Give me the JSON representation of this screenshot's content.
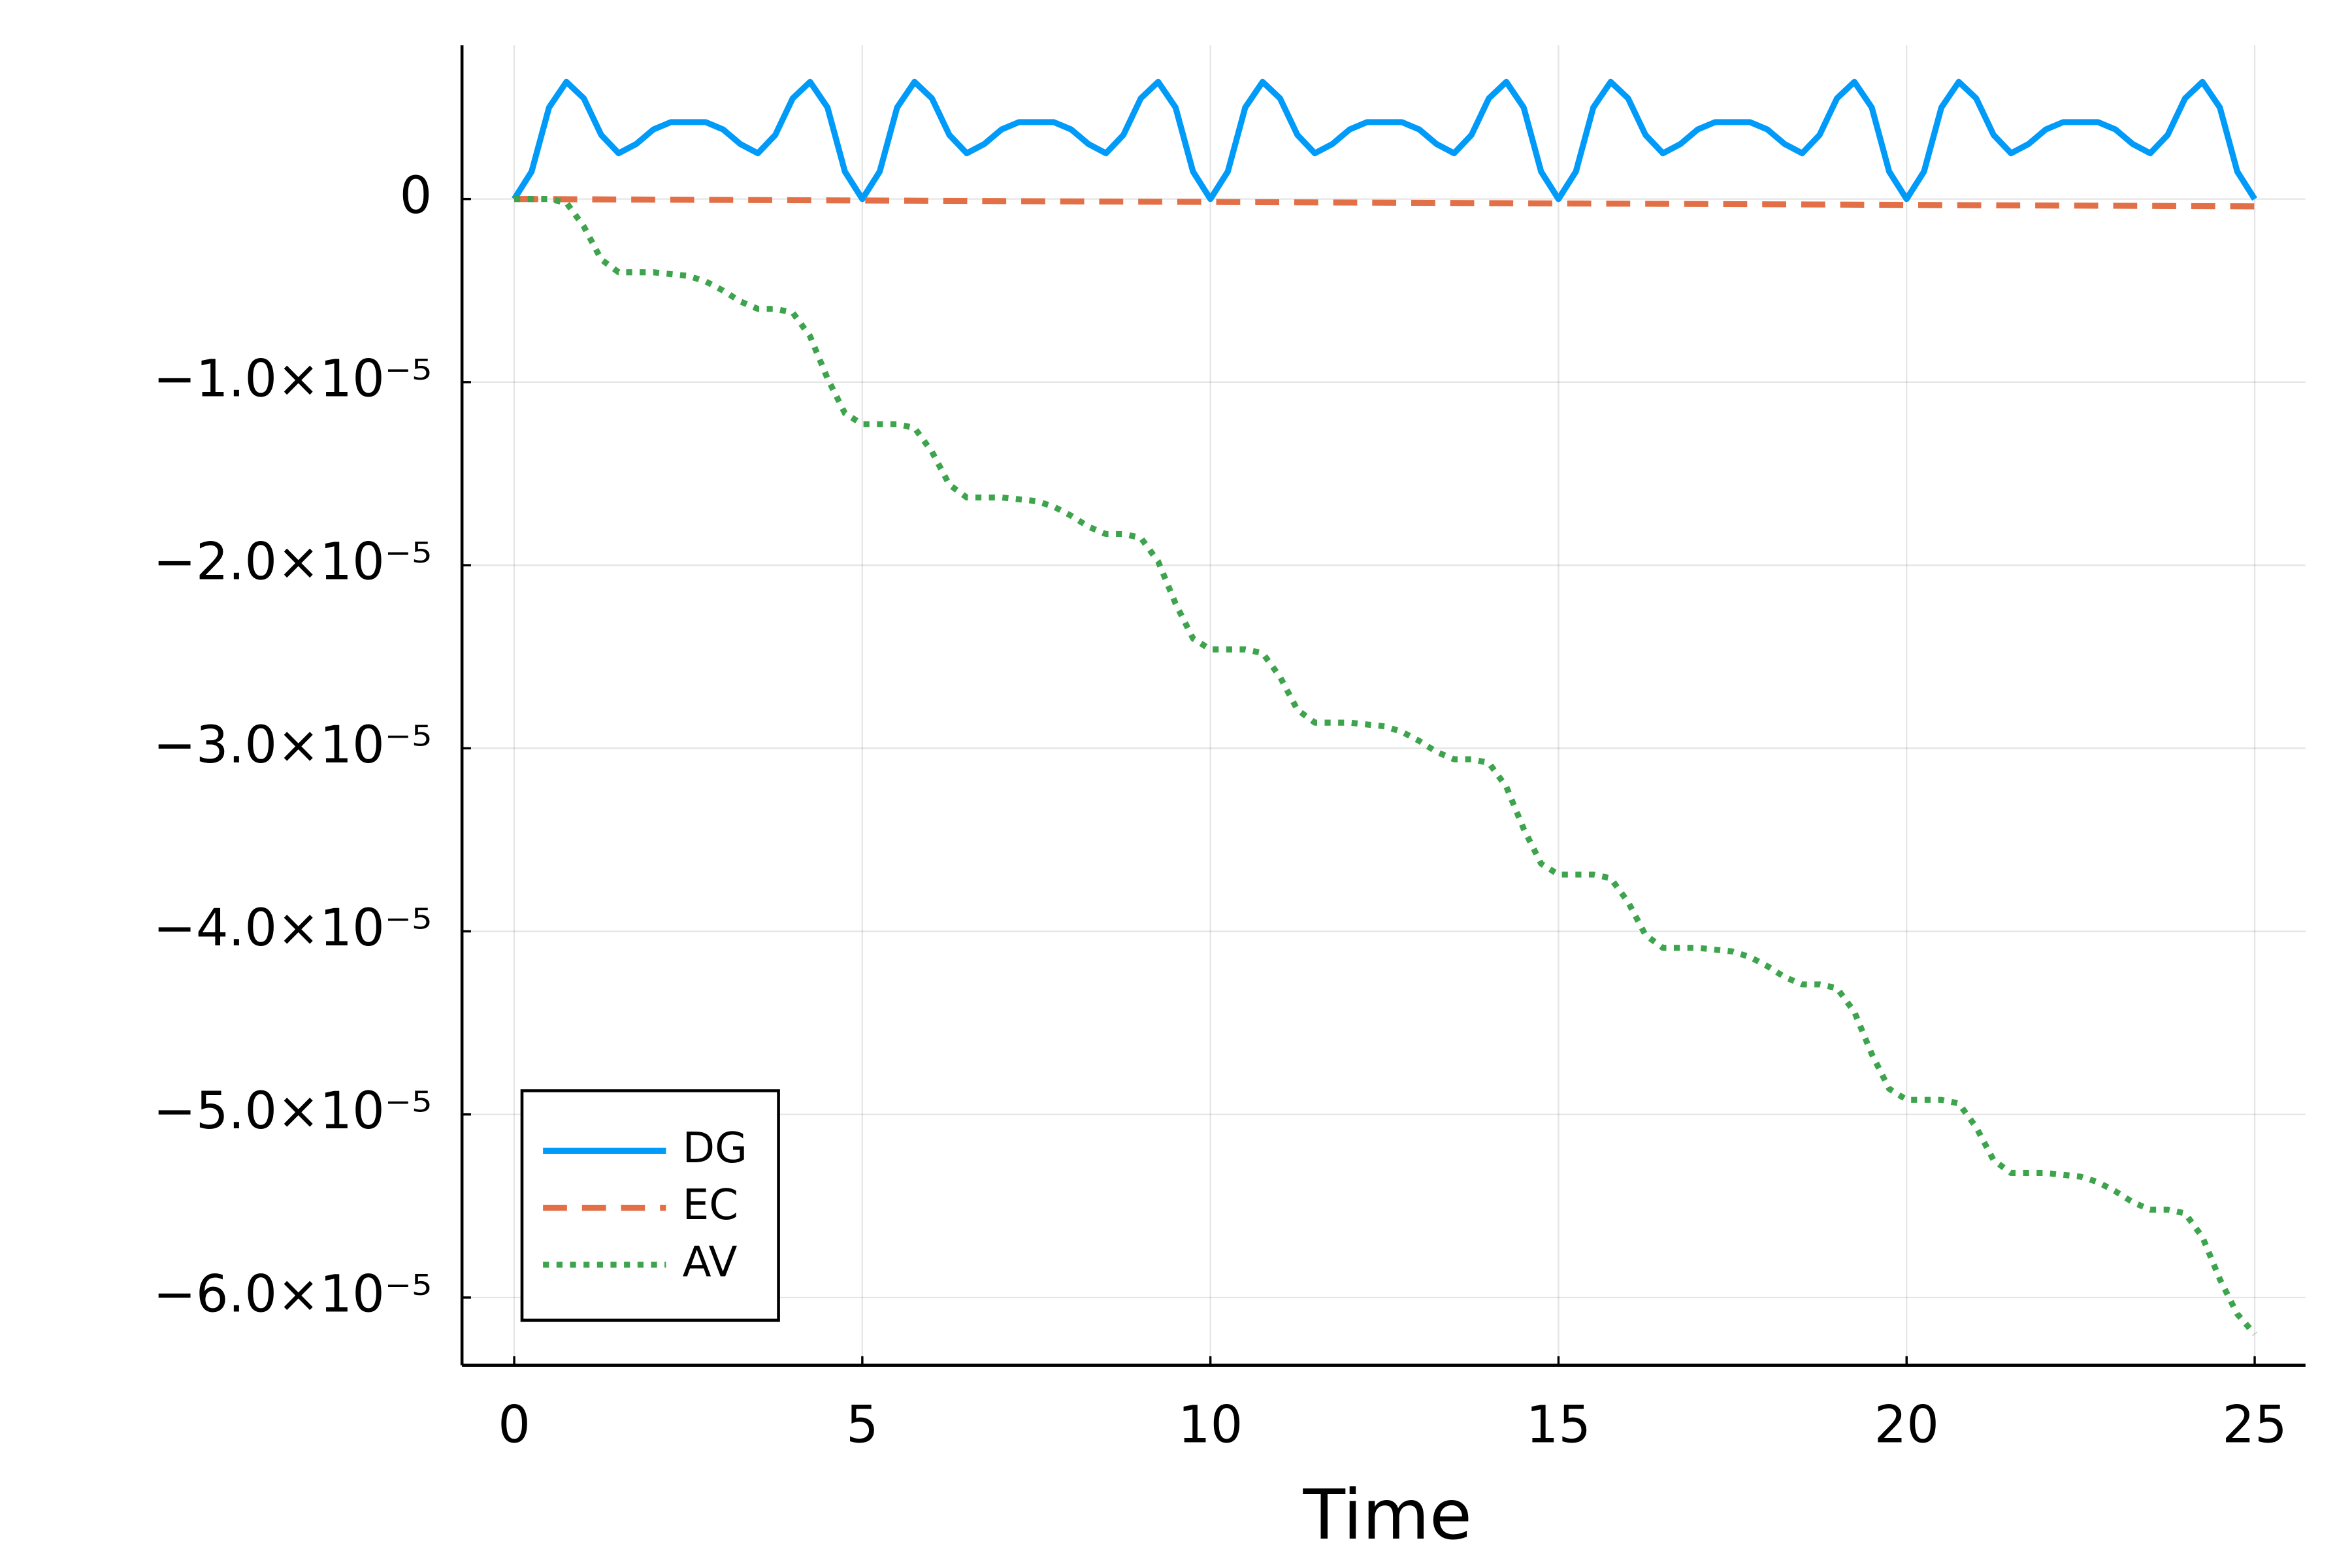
{
  "chart_data": {
    "type": "line",
    "xlabel": "Time",
    "xlim": [
      -0.75,
      25.73
    ],
    "xticks": [
      0,
      5,
      10,
      15,
      20,
      25
    ],
    "ylim": [
      -6.37e-05,
      8.4e-06
    ],
    "yticks": [
      0,
      {
        "value": -1e-05,
        "label": "−1.0×10⁻⁵"
      },
      {
        "value": -2e-05,
        "label": "−2.0×10⁻⁵"
      },
      {
        "value": -3e-05,
        "label": "−3.0×10⁻⁵"
      },
      {
        "value": -4e-05,
        "label": "−4.0×10⁻⁵"
      },
      {
        "value": -5e-05,
        "label": "−5.0×10⁻⁵"
      },
      {
        "value": -6e-05,
        "label": "−6.0×10⁻⁵"
      }
    ],
    "grid": true,
    "legend": "bottom-left",
    "x": [
      0,
      0.25,
      0.5,
      0.75,
      1,
      1.25,
      1.5,
      1.75,
      2,
      2.25,
      2.5,
      2.75,
      3,
      3.25,
      3.5,
      3.75,
      4,
      4.25,
      4.5,
      4.75,
      5,
      5.25,
      5.5,
      5.75,
      6,
      6.25,
      6.5,
      6.75,
      7,
      7.25,
      7.5,
      7.75,
      8,
      8.25,
      8.5,
      8.75,
      9,
      9.25,
      9.5,
      9.75,
      10,
      10.25,
      10.5,
      10.75,
      11,
      11.25,
      11.5,
      11.75,
      12,
      12.25,
      12.5,
      12.75,
      13,
      13.25,
      13.5,
      13.75,
      14,
      14.25,
      14.5,
      14.75,
      15,
      15.25,
      15.5,
      15.75,
      16,
      16.25,
      16.5,
      16.75,
      17,
      17.25,
      17.5,
      17.75,
      18,
      18.25,
      18.5,
      18.75,
      19,
      19.25,
      19.5,
      19.75,
      20,
      20.25,
      20.5,
      20.75,
      21,
      21.25,
      21.5,
      21.75,
      22,
      22.25,
      22.5,
      22.75,
      23,
      23.25,
      23.5,
      23.75,
      24,
      24.25,
      24.5,
      24.75,
      25
    ],
    "series": [
      {
        "name": "DG",
        "color": "#009af9",
        "style": "solid",
        "values": [
          0,
          1.5e-06,
          5e-06,
          6.4e-06,
          5.5e-06,
          3.5e-06,
          2.5e-06,
          3e-06,
          3.8e-06,
          4.2e-06,
          4.2e-06,
          4.2e-06,
          3.8e-06,
          3e-06,
          2.5e-06,
          3.5e-06,
          5.5e-06,
          6.4e-06,
          5e-06,
          1.5e-06,
          0,
          1.5e-06,
          5e-06,
          6.4e-06,
          5.5e-06,
          3.5e-06,
          2.5e-06,
          3e-06,
          3.8e-06,
          4.2e-06,
          4.2e-06,
          4.2e-06,
          3.8e-06,
          3e-06,
          2.5e-06,
          3.5e-06,
          5.5e-06,
          6.4e-06,
          5e-06,
          1.5e-06,
          0,
          1.5e-06,
          5e-06,
          6.4e-06,
          5.5e-06,
          3.5e-06,
          2.5e-06,
          3e-06,
          3.8e-06,
          4.2e-06,
          4.2e-06,
          4.2e-06,
          3.8e-06,
          3e-06,
          2.5e-06,
          3.5e-06,
          5.5e-06,
          6.4e-06,
          5e-06,
          1.5e-06,
          0,
          1.5e-06,
          5e-06,
          6.4e-06,
          5.5e-06,
          3.5e-06,
          2.5e-06,
          3e-06,
          3.8e-06,
          4.2e-06,
          4.2e-06,
          4.2e-06,
          3.8e-06,
          3e-06,
          2.5e-06,
          3.5e-06,
          5.5e-06,
          6.4e-06,
          5e-06,
          1.5e-06,
          0,
          1.5e-06,
          5e-06,
          6.4e-06,
          5.5e-06,
          3.5e-06,
          2.5e-06,
          3e-06,
          3.8e-06,
          4.2e-06,
          4.2e-06,
          4.2e-06,
          3.8e-06,
          3e-06,
          2.5e-06,
          3.5e-06,
          5.5e-06,
          6.4e-06,
          5e-06,
          1.5e-06,
          0
        ]
      },
      {
        "name": "EC",
        "color": "#e26f46",
        "style": "dash",
        "x": [
          0,
          25
        ],
        "values": [
          0,
          -4e-07
        ]
      },
      {
        "name": "AV",
        "color": "#3da44d",
        "style": "dot",
        "values": [
          0,
          0,
          0,
          -2e-07,
          -1.5e-06,
          -3.3e-06,
          -4e-06,
          -4e-06,
          -4e-06,
          -4.1e-06,
          -4.2e-06,
          -4.5e-06,
          -5e-06,
          -5.6e-06,
          -6e-06,
          -6e-06,
          -6.2e-06,
          -7.5e-06,
          -9.8e-06,
          -1.17e-05,
          -1.23e-05,
          -1.23e-05,
          -1.23e-05,
          -1.25e-05,
          -1.38e-05,
          -1.56e-05,
          -1.63e-05,
          -1.63e-05,
          -1.63e-05,
          -1.64e-05,
          -1.65e-05,
          -1.68e-05,
          -1.73e-05,
          -1.79e-05,
          -1.83e-05,
          -1.83e-05,
          -1.85e-05,
          -1.98e-05,
          -2.21e-05,
          -2.4e-05,
          -2.46e-05,
          -2.46e-05,
          -2.46e-05,
          -2.48e-05,
          -2.61e-05,
          -2.79e-05,
          -2.86e-05,
          -2.86e-05,
          -2.86e-05,
          -2.87e-05,
          -2.88e-05,
          -2.91e-05,
          -2.96e-05,
          -3.02e-05,
          -3.06e-05,
          -3.06e-05,
          -3.08e-05,
          -3.21e-05,
          -3.44e-05,
          -3.63e-05,
          -3.69e-05,
          -3.69e-05,
          -3.69e-05,
          -3.71e-05,
          -3.84e-05,
          -4.02e-05,
          -4.09e-05,
          -4.09e-05,
          -4.09e-05,
          -4.1e-05,
          -4.11e-05,
          -4.14e-05,
          -4.19e-05,
          -4.25e-05,
          -4.29e-05,
          -4.29e-05,
          -4.31e-05,
          -4.44e-05,
          -4.67e-05,
          -4.86e-05,
          -4.92e-05,
          -4.92e-05,
          -4.92e-05,
          -4.94e-05,
          -5.07e-05,
          -5.25e-05,
          -5.32e-05,
          -5.32e-05,
          -5.32e-05,
          -5.33e-05,
          -5.34e-05,
          -5.37e-05,
          -5.42e-05,
          -5.48e-05,
          -5.52e-05,
          -5.52e-05,
          -5.54e-05,
          -5.67e-05,
          -5.9e-05,
          -6.09e-05,
          -6.2e-05
        ]
      }
    ]
  }
}
